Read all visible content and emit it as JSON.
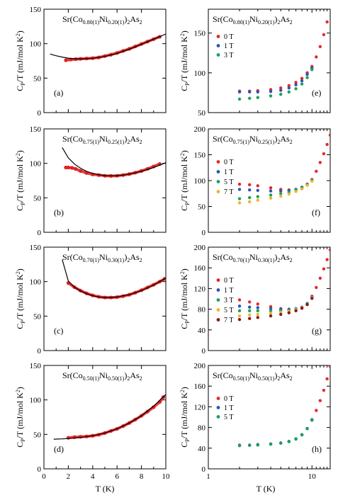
{
  "figure": {
    "xlabel_left": "T (K)",
    "xlabel_right": "T (K)",
    "ylabel_main": "C",
    "ylabel_sub": "P",
    "ylabel_rest": "/T (mJ/mol K",
    "ylabel_sup": "2",
    "ylabel_close": ")"
  },
  "colors": {
    "data_red": "#e02020",
    "fit_black": "#000000",
    "h0": "#e8262a",
    "h1": "#2b55b5",
    "h3": "#17a35a",
    "h5": "#f0b428",
    "h7": "#8b1a1a"
  },
  "chart_data": [
    {
      "id": "a",
      "type": "scatter",
      "panel_label": "(a)",
      "title_parts": [
        "Sr(Co",
        "0.80(1)",
        "Ni",
        "0.20(1)",
        ")",
        "2",
        "As",
        "2"
      ],
      "xlim": [
        0,
        10
      ],
      "ylim": [
        0,
        150
      ],
      "yticks": [
        0,
        50,
        100,
        150
      ],
      "series": [
        {
          "kind": "data",
          "color": "#e02020",
          "x": [
            1.8,
            2.2,
            2.6,
            3.0,
            3.5,
            4.0,
            4.5,
            5.0,
            5.5,
            6.0,
            6.5,
            7.0,
            7.5,
            8.0,
            8.5,
            9.0,
            9.5
          ],
          "y": [
            76,
            77,
            77.5,
            78,
            78.5,
            79,
            80,
            82,
            84,
            86.5,
            89.5,
            92.5,
            96,
            99.5,
            103,
            106.5,
            110
          ]
        },
        {
          "kind": "fit",
          "color": "#000000",
          "x": [
            0.5,
            1.0,
            1.5,
            2.0,
            2.5,
            3.0,
            3.5,
            4.0,
            5.0,
            6.0,
            7.0,
            8.0,
            9.0,
            10.0
          ],
          "y": [
            85,
            82.5,
            80.5,
            79,
            78.2,
            78,
            78.2,
            78.8,
            81.5,
            86,
            92,
            99,
            106.5,
            114
          ]
        }
      ]
    },
    {
      "id": "b",
      "type": "scatter",
      "panel_label": "(b)",
      "title_parts": [
        "Sr(Co",
        "0.75(1)",
        "Ni",
        "0.25(1)",
        ")",
        "2",
        "As",
        "2"
      ],
      "xlim": [
        0,
        10
      ],
      "ylim": [
        0,
        150
      ],
      "yticks": [
        0,
        50,
        100,
        150
      ],
      "series": [
        {
          "kind": "data",
          "color": "#e02020",
          "x": [
            1.8,
            2.0,
            2.3,
            2.6,
            3.0,
            3.5,
            4.0,
            4.5,
            5.0,
            5.5,
            6.0,
            6.5,
            7.0,
            7.5,
            8.0,
            8.5,
            9.0,
            9.5
          ],
          "y": [
            94,
            94,
            93.5,
            92,
            89,
            86,
            84,
            83,
            82,
            81.8,
            82,
            83,
            84.5,
            86.5,
            89,
            92,
            95.5,
            99
          ]
        },
        {
          "kind": "fit",
          "color": "#000000",
          "x": [
            1.5,
            2.0,
            2.5,
            3.0,
            3.5,
            4.0,
            4.5,
            5.0,
            5.5,
            6.0,
            6.5,
            7.0,
            8.0,
            9.0,
            10.0
          ],
          "y": [
            123,
            108,
            99,
            93,
            88.5,
            85.5,
            83.5,
            82.3,
            82,
            82.2,
            83,
            84.5,
            88.5,
            94,
            101
          ]
        }
      ]
    },
    {
      "id": "c",
      "type": "scatter",
      "panel_label": "(c)",
      "title_parts": [
        "Sr(Co",
        "0.70(1)",
        "Ni",
        "0.30(1)",
        ")",
        "2",
        "As",
        "2"
      ],
      "xlim": [
        0,
        10
      ],
      "ylim": [
        0,
        150
      ],
      "yticks": [
        0,
        50,
        100,
        150
      ],
      "series": [
        {
          "kind": "data",
          "color": "#e02020",
          "x": [
            2.0,
            2.5,
            3.0,
            3.5,
            4.0,
            4.5,
            5.0,
            5.5,
            6.0,
            6.5,
            7.0,
            7.5,
            8.0,
            8.5,
            9.0,
            9.5,
            9.9
          ],
          "y": [
            98,
            92,
            87,
            83,
            80,
            78,
            77,
            77,
            77.5,
            79,
            81,
            84,
            87.5,
            91.5,
            95.5,
            100,
            104
          ]
        },
        {
          "kind": "fit",
          "color": "#000000",
          "x": [
            1.5,
            2.0,
            2.5,
            3.0,
            3.5,
            4.0,
            4.5,
            5.0,
            5.5,
            6.0,
            7.0,
            8.0,
            9.0,
            10.0
          ],
          "y": [
            132,
            101,
            92,
            86.5,
            82.5,
            79.5,
            77.8,
            77,
            77,
            77.8,
            81,
            87,
            95,
            105
          ]
        }
      ]
    },
    {
      "id": "d",
      "type": "scatter",
      "panel_label": "(d)",
      "title_parts": [
        "Sr(Co",
        "0.50(1)",
        "Ni",
        "0.50(1)",
        ")",
        "2",
        "As",
        "2"
      ],
      "xlim": [
        0,
        10
      ],
      "ylim": [
        0,
        150
      ],
      "yticks": [
        0,
        50,
        100,
        150
      ],
      "xticks": [
        0,
        2,
        4,
        6,
        8,
        10
      ],
      "series": [
        {
          "kind": "data",
          "color": "#e02020",
          "x": [
            2.0,
            2.5,
            3.0,
            3.5,
            4.0,
            4.5,
            5.0,
            5.5,
            6.0,
            6.5,
            7.0,
            7.5,
            8.0,
            8.5,
            9.0,
            9.5,
            9.8
          ],
          "y": [
            45,
            46,
            46.5,
            47,
            48,
            49.5,
            52,
            55,
            58,
            62,
            66.5,
            71.5,
            77,
            83,
            89.5,
            97,
            104
          ]
        },
        {
          "kind": "fit",
          "color": "#000000",
          "x": [
            0.8,
            1.5,
            2.0,
            3.0,
            4.0,
            5.0,
            6.0,
            7.0,
            8.0,
            9.0,
            10.0
          ],
          "y": [
            43,
            43.5,
            44,
            45.5,
            48,
            52,
            58,
            66.5,
            77,
            91,
            108
          ]
        }
      ]
    },
    {
      "id": "e",
      "type": "scatter",
      "panel_label": "(e)",
      "title_parts": [
        "Sr(Co",
        "0.80(1)",
        "Ni",
        "0.20(1)",
        ")",
        "2",
        "As",
        "2"
      ],
      "xscale": "log",
      "xlim": [
        1,
        15
      ],
      "ylim": [
        50,
        180
      ],
      "yticks": [
        50,
        100,
        150
      ],
      "legend_position": "upper-left",
      "series": [
        {
          "name": "0 T",
          "color": "#e8262a",
          "x": [
            2,
            2.5,
            3,
            4,
            5,
            6,
            7,
            8,
            9,
            10,
            11,
            12,
            13,
            14,
            15
          ],
          "y": [
            77,
            77,
            77.5,
            79,
            81,
            84,
            88,
            93,
            100,
            108,
            120,
            133,
            148,
            164,
            182
          ]
        },
        {
          "name": "1 T",
          "color": "#2b55b5",
          "x": [
            2,
            2.5,
            3,
            4,
            5,
            6,
            7,
            8,
            9,
            10
          ],
          "y": [
            76,
            76,
            76,
            76.5,
            78,
            81,
            85,
            90,
            98,
            106
          ]
        },
        {
          "name": "3 T",
          "color": "#17a35a",
          "x": [
            2,
            2.5,
            3,
            4,
            5,
            6,
            7,
            8,
            9,
            10
          ],
          "y": [
            67,
            68,
            69,
            71,
            73,
            76,
            80,
            86,
            94,
            104
          ]
        }
      ]
    },
    {
      "id": "f",
      "type": "scatter",
      "panel_label": "(f)",
      "title_parts": [
        "Sr(Co",
        "0.75(1)",
        "Ni",
        "0.25(1)",
        ")",
        "2",
        "As",
        "2"
      ],
      "xscale": "log",
      "xlim": [
        1,
        15
      ],
      "ylim": [
        0,
        200
      ],
      "yticks": [
        0,
        50,
        100,
        150,
        200
      ],
      "legend_position": "left",
      "series": [
        {
          "name": "0 T",
          "color": "#e8262a",
          "x": [
            2,
            2.5,
            3,
            4,
            5,
            6,
            7,
            8,
            9,
            10,
            11,
            12,
            13,
            14,
            15
          ],
          "y": [
            93,
            92,
            90,
            86,
            83,
            82,
            83,
            87,
            93,
            102,
            118,
            135,
            152,
            170,
            188
          ]
        },
        {
          "name": "1 T",
          "color": "#2b55b5",
          "x": [
            2,
            2.5,
            3,
            4,
            5,
            6,
            7,
            8,
            9,
            10
          ],
          "y": [
            83,
            82,
            81,
            80,
            80,
            81,
            83,
            87,
            93,
            101
          ]
        },
        {
          "name": "5 T",
          "color": "#17a35a",
          "x": [
            2,
            2.5,
            3,
            4,
            5,
            6,
            7,
            8,
            9,
            10
          ],
          "y": [
            65,
            67,
            69,
            72,
            75,
            78,
            82,
            86,
            92,
            100
          ]
        },
        {
          "name": "7 T",
          "color": "#f0b428",
          "x": [
            2,
            2.5,
            3,
            4,
            5,
            6,
            7,
            8,
            9,
            10
          ],
          "y": [
            57,
            59,
            62,
            66,
            70,
            74,
            79,
            84,
            91,
            99
          ]
        }
      ]
    },
    {
      "id": "g",
      "type": "scatter",
      "panel_label": "(g)",
      "title_parts": [
        "Sr(Co",
        "0.70(1)",
        "Ni",
        "0.30(1)",
        ")",
        "2",
        "As",
        "2"
      ],
      "xscale": "log",
      "xlim": [
        1,
        15
      ],
      "ylim": [
        0,
        200
      ],
      "yticks": [
        0,
        40,
        80,
        120,
        160,
        200
      ],
      "legend_position": "left",
      "series": [
        {
          "name": "0 T",
          "color": "#e8262a",
          "x": [
            2,
            2.5,
            3,
            4,
            5,
            6,
            7,
            8,
            9,
            10,
            11,
            12,
            13,
            14,
            15
          ],
          "y": [
            98,
            94,
            90,
            85,
            81,
            79,
            79,
            82,
            90,
            105,
            122,
            140,
            158,
            176,
            195
          ]
        },
        {
          "name": "1 T",
          "color": "#2b55b5",
          "x": [
            2,
            2.5,
            3,
            4,
            5,
            6,
            7,
            8,
            9,
            10
          ],
          "y": [
            86,
            84,
            83,
            81,
            80,
            80,
            81,
            84,
            91,
            104
          ]
        },
        {
          "name": "3 T",
          "color": "#17a35a",
          "x": [
            2,
            2.5,
            3,
            4,
            5,
            6,
            7,
            8,
            9,
            10
          ],
          "y": [
            77,
            77,
            77,
            77,
            77,
            78,
            80,
            83,
            90,
            103
          ]
        },
        {
          "name": "5 T",
          "color": "#f0b428",
          "x": [
            2,
            2.5,
            3,
            4,
            5,
            6,
            7,
            8,
            9,
            10
          ],
          "y": [
            67,
            69,
            70,
            72,
            74,
            76,
            79,
            83,
            89,
            102
          ]
        },
        {
          "name": "7 T",
          "color": "#8b1a1a",
          "x": [
            2,
            2.5,
            3,
            4,
            5,
            6,
            7,
            8,
            9,
            10
          ],
          "y": [
            60,
            62,
            64,
            67,
            70,
            73,
            77,
            82,
            89,
            101
          ]
        }
      ]
    },
    {
      "id": "h",
      "type": "scatter",
      "panel_label": "(h)",
      "title_parts": [
        "Sr(Co",
        "0.50(1)",
        "Ni",
        "0.50(1)",
        ")",
        "2",
        "As",
        "2"
      ],
      "xscale": "log",
      "xlim": [
        1,
        15
      ],
      "ylim": [
        0,
        200
      ],
      "yticks": [
        0,
        40,
        80,
        120,
        160,
        200
      ],
      "xticks": [
        1,
        10
      ],
      "legend_position": "left",
      "series": [
        {
          "name": "0 T",
          "color": "#e8262a",
          "x": [
            2,
            2.5,
            3,
            4,
            5,
            6,
            7,
            8,
            9,
            10,
            11,
            12,
            13,
            14,
            15
          ],
          "y": [
            46,
            46,
            47,
            48,
            50,
            53,
            58,
            66,
            78,
            95,
            113,
            132,
            152,
            174,
            198
          ]
        },
        {
          "name": "1 T",
          "color": "#2b55b5",
          "x": [
            2,
            2.5,
            3,
            4,
            5,
            6,
            7,
            8,
            9,
            10
          ],
          "y": [
            45,
            45.5,
            46.5,
            48,
            50,
            53,
            58,
            66,
            78,
            95
          ]
        },
        {
          "name": "5 T",
          "color": "#17a35a",
          "x": [
            2,
            2.5,
            3,
            4,
            5,
            6,
            7,
            8,
            9,
            10
          ],
          "y": [
            45,
            45.5,
            46,
            47.5,
            49.5,
            52.5,
            57.5,
            65.5,
            77.5,
            94
          ]
        }
      ]
    }
  ]
}
